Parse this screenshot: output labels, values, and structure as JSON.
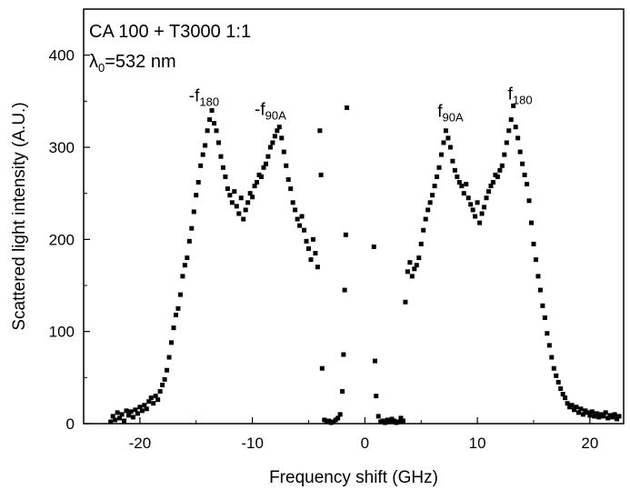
{
  "chart_data": {
    "type": "scatter",
    "annotation_line1": "CA 100 + T3000 1:1",
    "annotation_line2": {
      "prefix": "λ",
      "sub": "0",
      "suffix": "=532 nm"
    },
    "xlabel": "Frequency shift (GHz)",
    "ylabel": "Scattered light intensity (A.U.)",
    "xlim": [
      -25,
      23
    ],
    "ylim": [
      0,
      450
    ],
    "xticks": [
      -20,
      -10,
      0,
      10,
      20
    ],
    "yticks": [
      0,
      100,
      200,
      300,
      400
    ],
    "peak_labels": [
      {
        "prefix": "-f",
        "sub": "180",
        "x": -14.3,
        "y": 350
      },
      {
        "prefix": "-f",
        "sub": "90A",
        "x": -8.4,
        "y": 335
      },
      {
        "prefix": "f",
        "sub": "90A",
        "x": 7.6,
        "y": 333
      },
      {
        "prefix": "f",
        "sub": "180",
        "x": 13.8,
        "y": 352
      }
    ],
    "marker_color": "#000000",
    "series": [
      {
        "points": [
          [
            -22.6,
            2
          ],
          [
            -22.4,
            8
          ],
          [
            -22.2,
            4
          ],
          [
            -22.0,
            12
          ],
          [
            -21.8,
            6
          ],
          [
            -21.6,
            10
          ],
          [
            -21.4,
            3
          ],
          [
            -21.2,
            14
          ],
          [
            -21.0,
            9
          ],
          [
            -20.8,
            13
          ],
          [
            -20.6,
            7
          ],
          [
            -20.4,
            15
          ],
          [
            -20.2,
            11
          ],
          [
            -20.0,
            18
          ],
          [
            -19.8,
            14
          ],
          [
            -19.6,
            20
          ],
          [
            -19.4,
            16
          ],
          [
            -19.2,
            24
          ],
          [
            -19.0,
            28
          ],
          [
            -18.8,
            22
          ],
          [
            -18.6,
            30
          ],
          [
            -18.4,
            26
          ],
          [
            -18.2,
            35
          ],
          [
            -18.0,
            42
          ],
          [
            -17.8,
            48
          ],
          [
            -17.6,
            58
          ],
          [
            -17.4,
            72
          ],
          [
            -17.2,
            88
          ],
          [
            -17.0,
            104
          ],
          [
            -16.8,
            118
          ],
          [
            -16.6,
            125
          ],
          [
            -16.4,
            140
          ],
          [
            -16.2,
            160
          ],
          [
            -16.0,
            172
          ],
          [
            -15.8,
            180
          ],
          [
            -15.6,
            198
          ],
          [
            -15.4,
            212
          ],
          [
            -15.2,
            230
          ],
          [
            -15.0,
            248
          ],
          [
            -14.8,
            262
          ],
          [
            -14.6,
            280
          ],
          [
            -14.4,
            292
          ],
          [
            -14.2,
            302
          ],
          [
            -14.0,
            318
          ],
          [
            -13.8,
            330
          ],
          [
            -13.6,
            340
          ],
          [
            -13.4,
            326
          ],
          [
            -13.2,
            318
          ],
          [
            -13.0,
            305
          ],
          [
            -12.8,
            290
          ],
          [
            -12.6,
            278
          ],
          [
            -12.4,
            268
          ],
          [
            -12.2,
            255
          ],
          [
            -12.0,
            248
          ],
          [
            -11.8,
            240
          ],
          [
            -11.6,
            252
          ],
          [
            -11.4,
            236
          ],
          [
            -11.2,
            228
          ],
          [
            -11.0,
            245
          ],
          [
            -10.8,
            222
          ],
          [
            -10.6,
            232
          ],
          [
            -10.4,
            240
          ],
          [
            -10.2,
            250
          ],
          [
            -10.0,
            246
          ],
          [
            -9.8,
            258
          ],
          [
            -9.6,
            262
          ],
          [
            -9.4,
            270
          ],
          [
            -9.2,
            268
          ],
          [
            -9.0,
            278
          ],
          [
            -8.8,
            282
          ],
          [
            -8.6,
            290
          ],
          [
            -8.4,
            300
          ],
          [
            -8.2,
            305
          ],
          [
            -8.0,
            312
          ],
          [
            -7.8,
            318
          ],
          [
            -7.6,
            322
          ],
          [
            -7.4,
            310
          ],
          [
            -7.2,
            295
          ],
          [
            -7.0,
            280
          ],
          [
            -6.8,
            265
          ],
          [
            -6.6,
            255
          ],
          [
            -6.4,
            240
          ],
          [
            -6.2,
            232
          ],
          [
            -6.0,
            222
          ],
          [
            -5.8,
            215
          ],
          [
            -5.6,
            225
          ],
          [
            -5.4,
            210
          ],
          [
            -5.2,
            198
          ],
          [
            -5.0,
            190
          ],
          [
            -4.8,
            178
          ],
          [
            -4.6,
            200
          ],
          [
            -4.4,
            185
          ],
          [
            -4.2,
            170
          ],
          [
            -4.0,
            318
          ],
          [
            -3.9,
            270
          ],
          [
            -3.8,
            60
          ],
          [
            -3.6,
            4
          ],
          [
            -3.4,
            2
          ],
          [
            -3.2,
            3
          ],
          [
            -3.0,
            1
          ],
          [
            -2.8,
            2
          ],
          [
            -2.6,
            4
          ],
          [
            -2.4,
            6
          ],
          [
            -2.2,
            10
          ],
          [
            -2.0,
            35
          ],
          [
            -1.9,
            75
          ],
          [
            -1.8,
            145
          ],
          [
            -1.7,
            205
          ],
          [
            -1.6,
            343
          ],
          [
            0.8,
            192
          ],
          [
            0.9,
            68
          ],
          [
            1.0,
            30
          ],
          [
            1.2,
            8
          ],
          [
            1.4,
            2
          ],
          [
            1.6,
            3
          ],
          [
            1.8,
            1
          ],
          [
            2.0,
            4
          ],
          [
            2.2,
            2
          ],
          [
            2.4,
            5
          ],
          [
            2.6,
            3
          ],
          [
            2.8,
            1
          ],
          [
            3.0,
            2
          ],
          [
            3.2,
            6
          ],
          [
            3.4,
            3
          ],
          [
            3.6,
            132
          ],
          [
            3.8,
            165
          ],
          [
            4.0,
            175
          ],
          [
            4.2,
            160
          ],
          [
            4.4,
            168
          ],
          [
            4.6,
            172
          ],
          [
            4.8,
            180
          ],
          [
            5.0,
            195
          ],
          [
            5.2,
            210
          ],
          [
            5.4,
            222
          ],
          [
            5.6,
            232
          ],
          [
            5.8,
            240
          ],
          [
            6.0,
            248
          ],
          [
            6.2,
            258
          ],
          [
            6.4,
            268
          ],
          [
            6.6,
            278
          ],
          [
            6.8,
            292
          ],
          [
            7.0,
            305
          ],
          [
            7.2,
            318
          ],
          [
            7.4,
            310
          ],
          [
            7.6,
            300
          ],
          [
            7.8,
            285
          ],
          [
            8.0,
            275
          ],
          [
            8.2,
            268
          ],
          [
            8.4,
            262
          ],
          [
            8.6,
            258
          ],
          [
            8.8,
            250
          ],
          [
            9.0,
            260
          ],
          [
            9.2,
            245
          ],
          [
            9.4,
            238
          ],
          [
            9.6,
            232
          ],
          [
            9.8,
            225
          ],
          [
            10.0,
            240
          ],
          [
            10.2,
            218
          ],
          [
            10.4,
            228
          ],
          [
            10.6,
            235
          ],
          [
            10.8,
            245
          ],
          [
            11.0,
            252
          ],
          [
            11.2,
            258
          ],
          [
            11.4,
            262
          ],
          [
            11.6,
            270
          ],
          [
            11.8,
            268
          ],
          [
            12.0,
            275
          ],
          [
            12.2,
            280
          ],
          [
            12.4,
            292
          ],
          [
            12.6,
            305
          ],
          [
            12.8,
            318
          ],
          [
            13.0,
            330
          ],
          [
            13.2,
            345
          ],
          [
            13.4,
            322
          ],
          [
            13.6,
            310
          ],
          [
            13.8,
            295
          ],
          [
            14.0,
            282
          ],
          [
            14.2,
            270
          ],
          [
            14.4,
            260
          ],
          [
            14.6,
            242
          ],
          [
            14.8,
            218
          ],
          [
            15.0,
            195
          ],
          [
            15.2,
            178
          ],
          [
            15.4,
            160
          ],
          [
            15.6,
            145
          ],
          [
            15.8,
            128
          ],
          [
            16.0,
            115
          ],
          [
            16.2,
            98
          ],
          [
            16.4,
            85
          ],
          [
            16.6,
            72
          ],
          [
            16.8,
            60
          ],
          [
            17.0,
            52
          ],
          [
            17.2,
            45
          ],
          [
            17.4,
            38
          ],
          [
            17.6,
            32
          ],
          [
            17.8,
            28
          ],
          [
            18.0,
            22
          ],
          [
            18.2,
            18
          ],
          [
            18.4,
            20
          ],
          [
            18.6,
            15
          ],
          [
            18.8,
            18
          ],
          [
            19.0,
            12
          ],
          [
            19.2,
            16
          ],
          [
            19.4,
            10
          ],
          [
            19.6,
            14
          ],
          [
            19.8,
            12
          ],
          [
            20.0,
            9
          ],
          [
            20.2,
            13
          ],
          [
            20.4,
            8
          ],
          [
            20.6,
            11
          ],
          [
            20.8,
            7
          ],
          [
            21.0,
            10
          ],
          [
            21.2,
            8
          ],
          [
            21.4,
            12
          ],
          [
            21.6,
            6
          ],
          [
            21.8,
            9
          ],
          [
            22.0,
            7
          ],
          [
            22.2,
            10
          ],
          [
            22.4,
            5
          ],
          [
            22.6,
            8
          ]
        ]
      }
    ]
  }
}
